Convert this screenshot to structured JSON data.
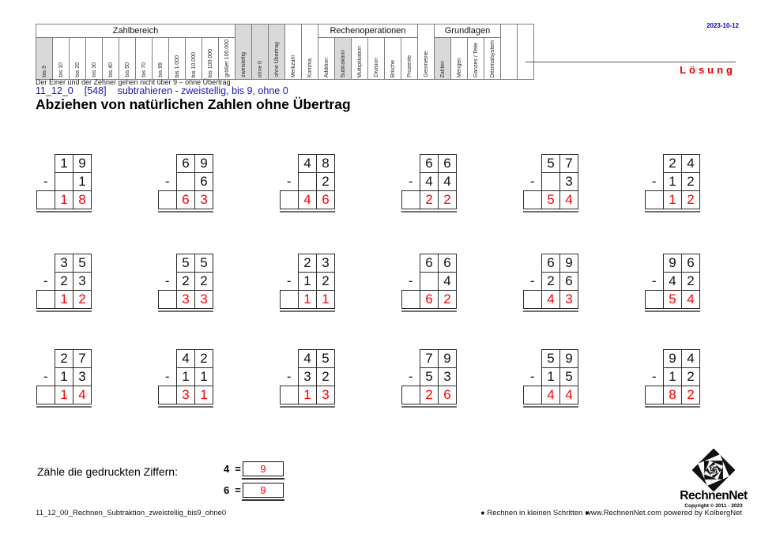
{
  "page": {
    "date": "2023-10-12",
    "solution_label": "Lösung",
    "hint": "Der Einer und der Zehner gehen nicht über 9 – ohne Übertrag",
    "id_code": "11_12_0",
    "id_ref": "[548]",
    "id_desc": "subtrahieren - zweistellig, bis 9, ohne 0",
    "title": "Abziehen von natürlichen Zahlen ohne Übertrag"
  },
  "header_matrix": {
    "top_cells": [
      {
        "label": "Zahlbereich",
        "colspan": 12,
        "type": "group"
      },
      {
        "label": "zweistellig",
        "rowspan": 2,
        "highlighted": true,
        "type": "tag"
      },
      {
        "label": "ohne 0",
        "rowspan": 2,
        "highlighted": true,
        "type": "tag"
      },
      {
        "label": "ohne Übertrag",
        "rowspan": 2,
        "highlighted": true,
        "type": "tag"
      },
      {
        "label": "Merkzahl",
        "rowspan": 2,
        "highlighted": false,
        "type": "tag"
      },
      {
        "label": "Komma",
        "rowspan": 2,
        "highlighted": false,
        "type": "tag"
      },
      {
        "label": "Rechenoperationen",
        "colspan": 6,
        "type": "group"
      },
      {
        "label": "Geometrie",
        "rowspan": 2,
        "highlighted": false,
        "type": "tag"
      },
      {
        "label": "Grundlagen",
        "colspan": 4,
        "type": "group"
      },
      {
        "label": "",
        "rowspan": 2,
        "highlighted": false,
        "type": "tag"
      },
      {
        "label": "",
        "rowspan": 2,
        "highlighted": false,
        "type": "tag"
      }
    ],
    "bottom_cells": [
      {
        "label": "bis 9",
        "highlighted": true
      },
      {
        "label": "bis 10",
        "highlighted": false
      },
      {
        "label": "bis 20",
        "highlighted": false
      },
      {
        "label": "bis 30",
        "highlighted": false
      },
      {
        "label": "bis 40",
        "highlighted": false
      },
      {
        "label": "bis 50",
        "highlighted": false
      },
      {
        "label": "bis 70",
        "highlighted": false
      },
      {
        "label": "bis 99",
        "highlighted": false
      },
      {
        "label": "bis 1.000",
        "highlighted": false
      },
      {
        "label": "bis 10.000",
        "highlighted": false
      },
      {
        "label": "bis 100.000",
        "highlighted": false
      },
      {
        "label": "größer 100.000",
        "highlighted": false
      },
      {
        "label": "Addition",
        "highlighted": false
      },
      {
        "label": "Subtraktion",
        "highlighted": true
      },
      {
        "label": "Multiplikation",
        "highlighted": false
      },
      {
        "label": "Division",
        "highlighted": false
      },
      {
        "label": "Brüche",
        "highlighted": false
      },
      {
        "label": "Prozente",
        "highlighted": false
      },
      {
        "label": "Zahlen",
        "highlighted": true
      },
      {
        "label": "Mengen",
        "highlighted": false
      },
      {
        "label": "Ganzes / Teile",
        "highlighted": false
      },
      {
        "label": "Dezimalsystem",
        "highlighted": false
      }
    ]
  },
  "problems": {
    "operator": "-",
    "rows": [
      [
        {
          "minuend": [
            "1",
            "9"
          ],
          "subtrahend": [
            "",
            "1"
          ],
          "result": [
            "1",
            "8"
          ]
        },
        {
          "minuend": [
            "6",
            "9"
          ],
          "subtrahend": [
            "",
            "6"
          ],
          "result": [
            "6",
            "3"
          ]
        },
        {
          "minuend": [
            "4",
            "8"
          ],
          "subtrahend": [
            "",
            "2"
          ],
          "result": [
            "4",
            "6"
          ]
        },
        {
          "minuend": [
            "6",
            "6"
          ],
          "subtrahend": [
            "4",
            "4"
          ],
          "result": [
            "2",
            "2"
          ]
        },
        {
          "minuend": [
            "5",
            "7"
          ],
          "subtrahend": [
            "",
            "3"
          ],
          "result": [
            "5",
            "4"
          ]
        },
        {
          "minuend": [
            "2",
            "4"
          ],
          "subtrahend": [
            "1",
            "2"
          ],
          "result": [
            "1",
            "2"
          ]
        }
      ],
      [
        {
          "minuend": [
            "3",
            "5"
          ],
          "subtrahend": [
            "2",
            "3"
          ],
          "result": [
            "1",
            "2"
          ]
        },
        {
          "minuend": [
            "5",
            "5"
          ],
          "subtrahend": [
            "2",
            "2"
          ],
          "result": [
            "3",
            "3"
          ]
        },
        {
          "minuend": [
            "2",
            "3"
          ],
          "subtrahend": [
            "1",
            "2"
          ],
          "result": [
            "1",
            "1"
          ]
        },
        {
          "minuend": [
            "6",
            "6"
          ],
          "subtrahend": [
            "",
            "4"
          ],
          "result": [
            "6",
            "2"
          ]
        },
        {
          "minuend": [
            "6",
            "9"
          ],
          "subtrahend": [
            "2",
            "6"
          ],
          "result": [
            "4",
            "3"
          ]
        },
        {
          "minuend": [
            "9",
            "6"
          ],
          "subtrahend": [
            "4",
            "2"
          ],
          "result": [
            "5",
            "4"
          ]
        }
      ],
      [
        {
          "minuend": [
            "2",
            "7"
          ],
          "subtrahend": [
            "1",
            "3"
          ],
          "result": [
            "1",
            "4"
          ]
        },
        {
          "minuend": [
            "4",
            "2"
          ],
          "subtrahend": [
            "1",
            "1"
          ],
          "result": [
            "3",
            "1"
          ]
        },
        {
          "minuend": [
            "4",
            "5"
          ],
          "subtrahend": [
            "3",
            "2"
          ],
          "result": [
            "1",
            "3"
          ]
        },
        {
          "minuend": [
            "7",
            "9"
          ],
          "subtrahend": [
            "5",
            "3"
          ],
          "result": [
            "2",
            "6"
          ]
        },
        {
          "minuend": [
            "5",
            "9"
          ],
          "subtrahend": [
            "1",
            "5"
          ],
          "result": [
            "4",
            "4"
          ]
        },
        {
          "minuend": [
            "9",
            "4"
          ],
          "subtrahend": [
            "1",
            "2"
          ],
          "result": [
            "8",
            "2"
          ]
        }
      ]
    ]
  },
  "count_section": {
    "label": "Zähle die gedruckten Ziffern:",
    "equals": "=",
    "items": [
      {
        "digit": "4",
        "count": "9"
      },
      {
        "digit": "6",
        "count": "9"
      }
    ]
  },
  "footer": {
    "filename": "11_12_00_Rechnen_Subtraktion_zweistellig_bis9_ohne0",
    "slogan": "● Rechnen in kleinen Schritten ●",
    "website": "www.RechnenNet.com powered by KolbergNet"
  },
  "logo": {
    "icon": "op-art-twisted-squares-diamond",
    "name": "RechnenNet",
    "copyright": "Copyright © 2011 - 2023"
  },
  "colors": {
    "highlight_gray": "#d9d9d9",
    "accent_blue": "#1414cc",
    "accent_red": "#ff0000"
  }
}
